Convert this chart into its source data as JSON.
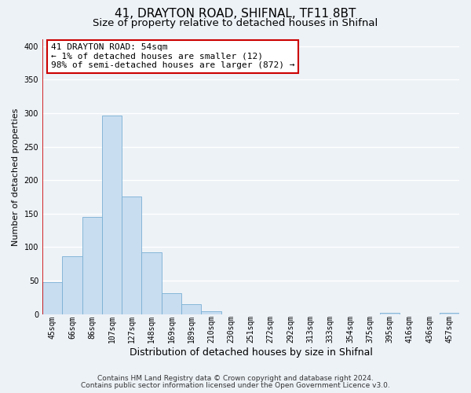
{
  "title": "41, DRAYTON ROAD, SHIFNAL, TF11 8BT",
  "subtitle": "Size of property relative to detached houses in Shifnal",
  "xlabel": "Distribution of detached houses by size in Shifnal",
  "ylabel": "Number of detached properties",
  "footnote1": "Contains HM Land Registry data © Crown copyright and database right 2024.",
  "footnote2": "Contains public sector information licensed under the Open Government Licence v3.0.",
  "bin_labels": [
    "45sqm",
    "66sqm",
    "86sqm",
    "107sqm",
    "127sqm",
    "148sqm",
    "169sqm",
    "189sqm",
    "210sqm",
    "230sqm",
    "251sqm",
    "272sqm",
    "292sqm",
    "313sqm",
    "333sqm",
    "354sqm",
    "375sqm",
    "395sqm",
    "416sqm",
    "436sqm",
    "457sqm"
  ],
  "bar_values": [
    48,
    87,
    145,
    296,
    175,
    92,
    31,
    15,
    4,
    0,
    0,
    0,
    0,
    0,
    0,
    0,
    0,
    2,
    0,
    0,
    2
  ],
  "bar_color": "#c8ddf0",
  "bar_edge_color": "#7aafd4",
  "annotation_title": "41 DRAYTON ROAD: 54sqm",
  "annotation_line1": "← 1% of detached houses are smaller (12)",
  "annotation_line2": "98% of semi-detached houses are larger (872) →",
  "annotation_box_edgecolor": "#cc0000",
  "red_line_color": "#cc0000",
  "ylim": [
    0,
    410
  ],
  "yticks": [
    0,
    50,
    100,
    150,
    200,
    250,
    300,
    350,
    400
  ],
  "bg_color": "#edf2f7",
  "grid_color": "#ffffff",
  "title_fontsize": 11,
  "subtitle_fontsize": 9.5,
  "xlabel_fontsize": 9,
  "ylabel_fontsize": 8,
  "tick_fontsize": 7,
  "annotation_fontsize": 8,
  "footnote_fontsize": 6.5
}
